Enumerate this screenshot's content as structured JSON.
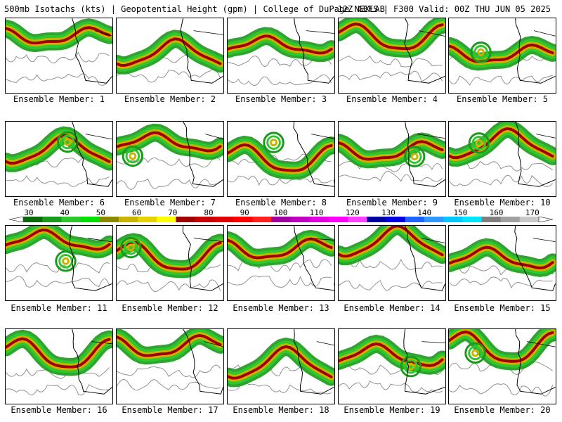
{
  "header": {
    "title_left": "500mb Isotachs (kts) | Geopotential Height (gpm) | College of DuPage NEXLAB",
    "title_right": "12Z GEFS | F300 Valid: 00Z THU JUN 05 2025"
  },
  "members": [
    {
      "caption": "Ensemble Member: 1"
    },
    {
      "caption": "Ensemble Member: 2"
    },
    {
      "caption": "Ensemble Member: 3"
    },
    {
      "caption": "Ensemble Member: 4"
    },
    {
      "caption": "Ensemble Member: 5"
    },
    {
      "caption": "Ensemble Member: 6"
    },
    {
      "caption": "Ensemble Member: 7"
    },
    {
      "caption": "Ensemble Member: 8"
    },
    {
      "caption": "Ensemble Member: 9"
    },
    {
      "caption": "Ensemble Member: 10"
    },
    {
      "caption": "Ensemble Member: 11"
    },
    {
      "caption": "Ensemble Member: 12"
    },
    {
      "caption": "Ensemble Member: 13"
    },
    {
      "caption": "Ensemble Member: 14"
    },
    {
      "caption": "Ensemble Member: 15"
    },
    {
      "caption": "Ensemble Member: 16"
    },
    {
      "caption": "Ensemble Member: 17"
    },
    {
      "caption": "Ensemble Member: 18"
    },
    {
      "caption": "Ensemble Member: 19"
    },
    {
      "caption": "Ensemble Member: 20"
    }
  ],
  "colorbar": {
    "ticks": [
      "30",
      "40",
      "50",
      "60",
      "70",
      "80",
      "90",
      "100",
      "110",
      "120",
      "130",
      "140",
      "150",
      "160",
      "170"
    ],
    "colors": [
      "#0b6b0b",
      "#1a9a1a",
      "#2ec82e",
      "#00e000",
      "#8a8a00",
      "#c8b400",
      "#e6d200",
      "#ffff00",
      "#a00000",
      "#c80000",
      "#e00000",
      "#ff0000",
      "#ff2020",
      "#a000a0",
      "#c000c0",
      "#e000e0",
      "#ff00ff",
      "#ff40ff",
      "#0000a0",
      "#0000e0",
      "#1e64ff",
      "#3296ff",
      "#00c8ff",
      "#00e6ff",
      "#808080",
      "#a0a0a0",
      "#c8c8c8"
    ]
  },
  "style": {
    "jet_colors": [
      "#1a9a1a",
      "#2ec82e",
      "#c8b400",
      "#a00000"
    ],
    "contour_color": "#909090",
    "coast_color": "#000000"
  }
}
